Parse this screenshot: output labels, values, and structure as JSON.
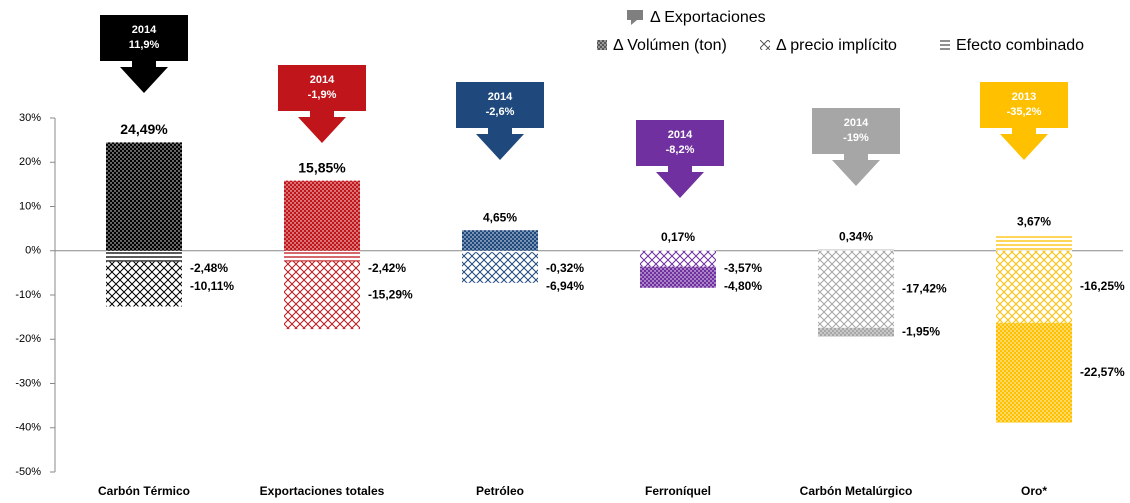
{
  "chart_data": {
    "type": "bar",
    "categories": [
      "Carbón Térmico",
      "Exportaciones totales",
      "Petróleo",
      "Ferroníquel",
      "Carbón  Metalúrgico",
      "Oro*"
    ],
    "colors": [
      "#000000",
      "#c0161b",
      "#1f497d",
      "#7030a0",
      "#a6a6a6",
      "#ffc000"
    ],
    "series": [
      {
        "name": "Efecto combinado",
        "pattern": "lines",
        "values": [
          -2.48,
          -2.42,
          -0.32,
          0.17,
          0.34,
          3.67
        ],
        "value_labels": [
          "-2,48%",
          "-2,42%",
          "-0,32%",
          "0,17%",
          "0,34%",
          "3,67%"
        ]
      },
      {
        "name": "Δ precio implícito",
        "pattern": "hatch",
        "values": [
          -10.11,
          -15.29,
          -6.94,
          -3.57,
          -17.42,
          -16.25
        ],
        "value_labels": [
          "-10,11%",
          "-15,29%",
          "-6,94%",
          "-3,57%",
          "-17,42%",
          "-16,25%"
        ]
      },
      {
        "name": "Δ Volúmen (ton)",
        "pattern": "dots",
        "values": [
          24.49,
          15.85,
          4.65,
          -4.8,
          -1.95,
          -22.57
        ],
        "value_labels": [
          "24,49%",
          "15,85%",
          "4,65%",
          "-4,80%",
          "-1,95%",
          "-22,57%"
        ]
      }
    ],
    "annotations": {
      "name": "Δ Exportaciones",
      "years": [
        "2014",
        "2014",
        "2014",
        "2014",
        "2014",
        "2013"
      ],
      "values": [
        11.9,
        -1.9,
        -2.6,
        -8.2,
        -19,
        -35.2
      ],
      "value_labels": [
        "11,9%",
        "-1,9%",
        "-2,6%",
        "-8,2%",
        "-19%",
        "-35,2%"
      ]
    },
    "ylim": [
      -50,
      30
    ],
    "yticks": [
      {
        "value": -50,
        "label": "-50%"
      },
      {
        "value": -40,
        "label": "-40%"
      },
      {
        "value": -30,
        "label": "-30%"
      },
      {
        "value": -20,
        "label": "-20%"
      },
      {
        "value": -10,
        "label": "-10%"
      },
      {
        "value": 0,
        "label": "0%"
      },
      {
        "value": 10,
        "label": "10%"
      },
      {
        "value": 20,
        "label": "20%"
      },
      {
        "value": 30,
        "label": "30%"
      }
    ]
  }
}
